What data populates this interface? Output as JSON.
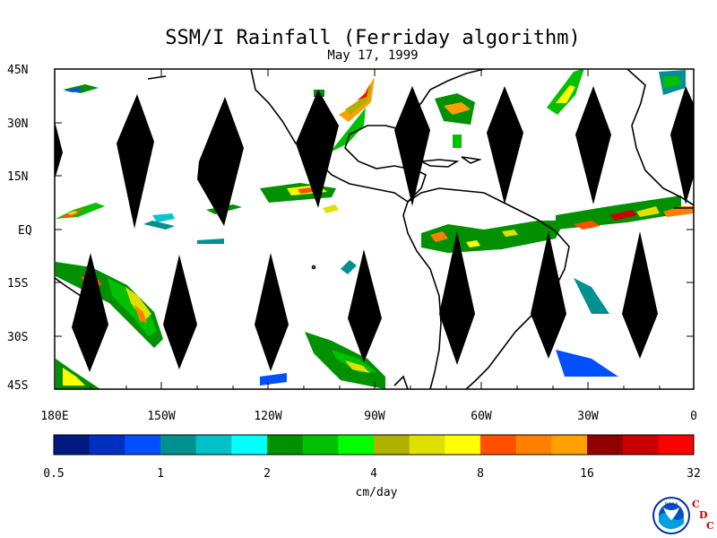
{
  "title": "SSM/I Rainfall (Ferriday algorithm)",
  "subtitle": "May 17, 1999",
  "lat_labels": [
    "45N",
    "30N",
    "15N",
    "EQ",
    "15S",
    "30S",
    "45S"
  ],
  "lon_labels": [
    "180E",
    "150W",
    "120W",
    "90W",
    "60W",
    "30W",
    "0"
  ],
  "colorbar": {
    "unit": "cm/day",
    "ticks": [
      "0.5",
      "1",
      "2",
      "4",
      "8",
      "16",
      "32"
    ],
    "colors": [
      "#001a80",
      "#0030c0",
      "#0050ff",
      "#009090",
      "#00c0c8",
      "#00ffff",
      "#009000",
      "#00c000",
      "#00ff00",
      "#b0b000",
      "#e0e000",
      "#ffff00",
      "#ff5000",
      "#ff8000",
      "#ffa000",
      "#900000",
      "#c80000",
      "#ff0000"
    ]
  },
  "map": {
    "lon_range": [
      -180,
      0
    ],
    "lat_range": [
      -45,
      45
    ],
    "no_data_color": "#000000"
  },
  "logo": {
    "name": "NOAA",
    "cdc": [
      "C",
      "D",
      "C"
    ]
  }
}
